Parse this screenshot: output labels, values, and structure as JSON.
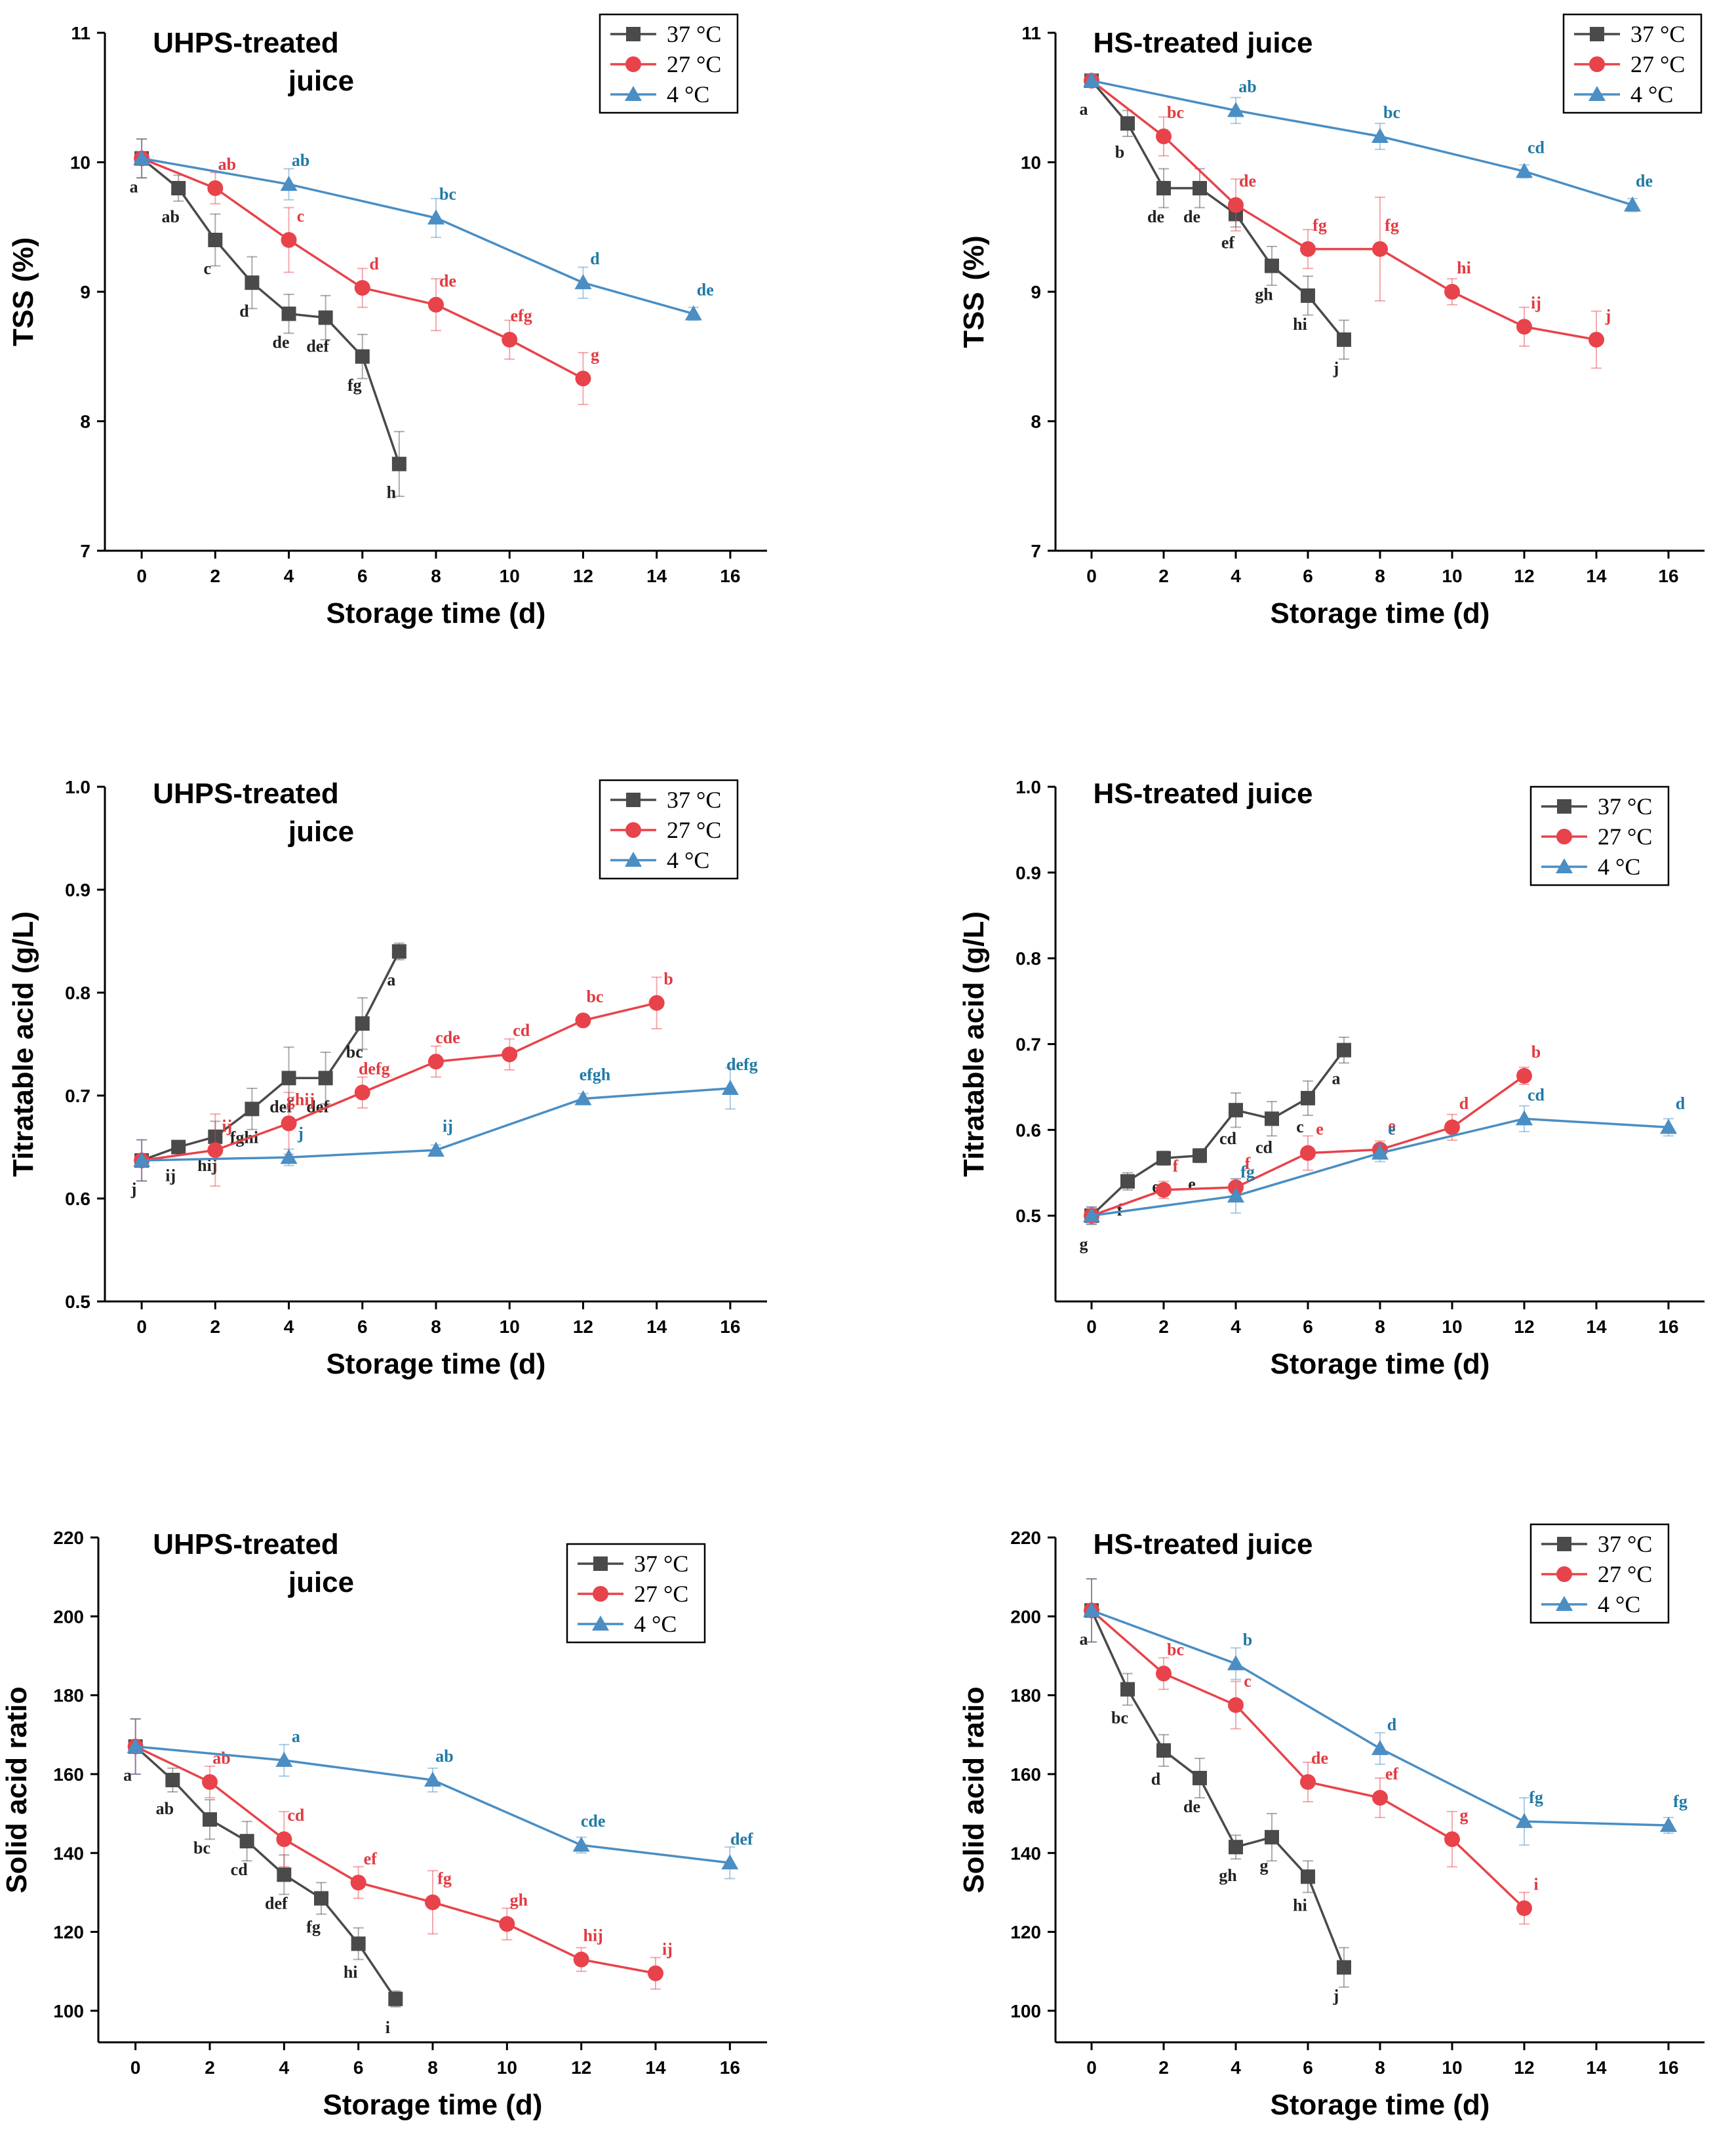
{
  "colors": {
    "c37": "#4a4a4a",
    "c27": "#e8434a",
    "c4": "#4a8ec4",
    "letter37": "#222222",
    "letter27": "#e23a40",
    "letter4": "#1f7aa6",
    "axis": "#000000"
  },
  "legend": {
    "labels": [
      "37 °C",
      "27 °C",
      "4 °C"
    ],
    "markers": [
      "square",
      "circle",
      "triangle"
    ]
  },
  "chart_data": [
    {
      "type": "line",
      "title": "UHPS-treated juice",
      "title_lines": [
        "UHPS-treated",
        "juice"
      ],
      "xlabel": "Storage time (d)",
      "ylabel": "TSS (%)",
      "xlim": [
        -1,
        17
      ],
      "ylim": [
        7,
        11
      ],
      "xticks": [
        0,
        2,
        4,
        6,
        8,
        10,
        12,
        14,
        16
      ],
      "yticks": [
        7,
        8,
        9,
        10,
        11
      ],
      "ytick_labels": [
        "7",
        "8",
        "9",
        "10",
        "11"
      ],
      "series": [
        {
          "name": "37 °C",
          "x": [
            0,
            1,
            2,
            3,
            4,
            5,
            6,
            7
          ],
          "y": [
            10.03,
            9.8,
            9.4,
            9.07,
            8.83,
            8.8,
            8.5,
            7.67
          ],
          "err": [
            0.15,
            0.1,
            0.2,
            0.2,
            0.15,
            0.17,
            0.17,
            0.25
          ],
          "letters": [
            "a",
            "ab",
            "c",
            "d",
            "de",
            "def",
            "fg",
            "h"
          ]
        },
        {
          "name": "27 °C",
          "x": [
            0,
            2,
            4,
            6,
            8,
            10,
            12
          ],
          "y": [
            10.03,
            9.8,
            9.4,
            9.03,
            8.9,
            8.63,
            8.33
          ],
          "err": [
            0.15,
            0.12,
            0.25,
            0.15,
            0.2,
            0.15,
            0.2
          ],
          "letters": [
            "",
            "ab",
            "c",
            "d",
            "de",
            "efg",
            "g"
          ]
        },
        {
          "name": "4 °C",
          "x": [
            0,
            4,
            8,
            12,
            15
          ],
          "y": [
            10.03,
            9.83,
            9.57,
            9.07,
            8.83
          ],
          "err": [
            0.15,
            0.12,
            0.15,
            0.12,
            0.05
          ],
          "letters": [
            "",
            "ab",
            "bc",
            "d",
            "de"
          ]
        }
      ]
    },
    {
      "type": "line",
      "title": "HS-treated juice",
      "title_lines": [
        "HS-treated juice"
      ],
      "xlabel": "Storage time (d)",
      "ylabel": "TSS  (%)",
      "xlim": [
        -1,
        17
      ],
      "ylim": [
        7,
        11
      ],
      "xticks": [
        0,
        2,
        4,
        6,
        8,
        10,
        12,
        14,
        16
      ],
      "yticks": [
        7,
        8,
        9,
        10,
        11
      ],
      "ytick_labels": [
        "7",
        "8",
        "9",
        "10",
        "11"
      ],
      "series": [
        {
          "name": "37 °C",
          "x": [
            0,
            1,
            2,
            3,
            4,
            5,
            6,
            7
          ],
          "y": [
            10.63,
            10.3,
            9.8,
            9.8,
            9.6,
            9.2,
            8.97,
            8.63
          ],
          "err": [
            0.05,
            0.1,
            0.15,
            0.15,
            0.1,
            0.15,
            0.15,
            0.15
          ],
          "letters": [
            "a",
            "b",
            "de",
            "de",
            "ef",
            "gh",
            "hi",
            "j"
          ]
        },
        {
          "name": "27 °C",
          "x": [
            0,
            2,
            4,
            6,
            8,
            10,
            12,
            14
          ],
          "y": [
            10.63,
            10.2,
            9.67,
            9.33,
            9.33,
            9.0,
            8.73,
            8.63
          ],
          "err": [
            0.05,
            0.15,
            0.2,
            0.15,
            0.4,
            0.1,
            0.15,
            0.22
          ],
          "letters": [
            "",
            "bc",
            "de",
            "fg",
            "fg",
            "hi",
            "ij",
            "j"
          ]
        },
        {
          "name": "4 °C",
          "x": [
            0,
            4,
            8,
            12,
            15
          ],
          "y": [
            10.63,
            10.4,
            10.2,
            9.93,
            9.67
          ],
          "err": [
            0.05,
            0.1,
            0.1,
            0.05,
            0.05
          ],
          "letters": [
            "",
            "ab",
            "bc",
            "cd",
            "de"
          ]
        }
      ]
    },
    {
      "type": "line",
      "title": "UHPS-treated juice",
      "title_lines": [
        "UHPS-treated",
        "juice"
      ],
      "xlabel": "Storage time (d)",
      "ylabel": "Titratable acid (g/L)",
      "xlim": [
        -1,
        17
      ],
      "ylim": [
        0.5,
        1.0
      ],
      "xticks": [
        0,
        2,
        4,
        6,
        8,
        10,
        12,
        14,
        16
      ],
      "yticks": [
        0.5,
        0.6,
        0.7,
        0.8,
        0.9,
        1.0
      ],
      "ytick_labels": [
        "0.5",
        "0.6",
        "0.7",
        "0.8",
        "0.9",
        "1.0"
      ],
      "series": [
        {
          "name": "37 °C",
          "x": [
            0,
            1,
            2,
            3,
            4,
            5,
            6,
            7
          ],
          "y": [
            0.637,
            0.65,
            0.66,
            0.687,
            0.717,
            0.717,
            0.77,
            0.84
          ],
          "err": [
            0.02,
            0.005,
            0.015,
            0.02,
            0.03,
            0.025,
            0.025,
            0.008
          ],
          "letters": [
            "j",
            "ij",
            "hij",
            "fghi",
            "def",
            "def",
            "bc",
            "a"
          ]
        },
        {
          "name": "27 °C",
          "x": [
            0,
            2,
            4,
            6,
            8,
            10,
            12,
            14
          ],
          "y": [
            0.637,
            0.647,
            0.673,
            0.703,
            0.733,
            0.74,
            0.773,
            0.79
          ],
          "err": [
            0.02,
            0.035,
            0.03,
            0.015,
            0.015,
            0.015,
            0.005,
            0.025
          ],
          "letters": [
            "",
            "ij",
            "ghij",
            "defg",
            "cde",
            "cd",
            "bc",
            "b"
          ]
        },
        {
          "name": "4 °C",
          "x": [
            0,
            4,
            8,
            12,
            16
          ],
          "y": [
            0.637,
            0.64,
            0.647,
            0.697,
            0.707
          ],
          "err": [
            0.02,
            0.008,
            0.005,
            0.005,
            0.02
          ],
          "letters": [
            "",
            "j",
            "ij",
            "efgh",
            "defg"
          ]
        }
      ]
    },
    {
      "type": "line",
      "title": "HS-treated juice",
      "title_lines": [
        "HS-treated juice"
      ],
      "xlabel": "Storage time (d)",
      "ylabel": "Titratable acid (g/L)",
      "xlim": [
        -1,
        17
      ],
      "ylim": [
        0.4,
        1.0
      ],
      "xticks": [
        0,
        2,
        4,
        6,
        8,
        10,
        12,
        14,
        16
      ],
      "yticks": [
        0.5,
        0.6,
        0.7,
        0.8,
        0.9,
        1.0
      ],
      "ytick_labels": [
        "0.5",
        "0.6",
        "0.7",
        "0.8",
        "0.9",
        "1.0"
      ],
      "series": [
        {
          "name": "37 °C",
          "x": [
            0,
            1,
            2,
            3,
            4,
            5,
            6,
            7
          ],
          "y": [
            0.5,
            0.54,
            0.567,
            0.57,
            0.623,
            0.613,
            0.637,
            0.693
          ],
          "err": [
            0.01,
            0.01,
            0.008,
            0.008,
            0.02,
            0.02,
            0.02,
            0.015
          ],
          "letters": [
            "g",
            "f",
            "e",
            "e",
            "cd",
            "cd",
            "c",
            "a"
          ]
        },
        {
          "name": "27 °C",
          "x": [
            0,
            2,
            4,
            6,
            8,
            10,
            12
          ],
          "y": [
            0.5,
            0.53,
            0.533,
            0.573,
            0.577,
            0.603,
            0.663
          ],
          "err": [
            0.01,
            0.01,
            0.01,
            0.02,
            0.01,
            0.015,
            0.01
          ],
          "letters": [
            "",
            "f",
            "f",
            "e",
            "e",
            "d",
            "b"
          ]
        },
        {
          "name": "4 °C",
          "x": [
            0,
            4,
            8,
            12,
            16
          ],
          "y": [
            0.5,
            0.523,
            0.573,
            0.613,
            0.603
          ],
          "err": [
            0.01,
            0.02,
            0.01,
            0.015,
            0.01
          ],
          "letters": [
            "",
            "fg",
            "e",
            "cd",
            "d"
          ]
        }
      ]
    },
    {
      "type": "line",
      "title": "UHPS-treated juice",
      "title_lines": [
        "UHPS-treated",
        "juice"
      ],
      "xlabel": "Storage time (d)",
      "ylabel": "Solid acid ratio",
      "xlim": [
        -1,
        17
      ],
      "ylim": [
        92,
        220
      ],
      "xticks": [
        0,
        2,
        4,
        6,
        8,
        10,
        12,
        14,
        16
      ],
      "yticks": [
        100,
        120,
        140,
        160,
        180,
        200,
        220
      ],
      "ytick_labels": [
        "100",
        "120",
        "140",
        "160",
        "180",
        "200",
        "220"
      ],
      "series": [
        {
          "name": "37 °C",
          "x": [
            0,
            1,
            2,
            3,
            4,
            5,
            6,
            7
          ],
          "y": [
            167,
            158.5,
            148.5,
            143,
            134.5,
            128.5,
            117,
            103
          ],
          "err": [
            7,
            3,
            5,
            5,
            5,
            4,
            4,
            2
          ],
          "letters": [
            "a",
            "ab",
            "bc",
            "cd",
            "def",
            "fg",
            "hi",
            "i"
          ]
        },
        {
          "name": "27 °C",
          "x": [
            0,
            2,
            4,
            6,
            8,
            10,
            12,
            14
          ],
          "y": [
            167,
            158,
            143.5,
            132.5,
            127.5,
            122,
            113,
            109.5
          ],
          "err": [
            7,
            4,
            7,
            4,
            8,
            4,
            3,
            4
          ],
          "letters": [
            "",
            "ab",
            "cd",
            "ef",
            "fg",
            "gh",
            "hij",
            "ij"
          ]
        },
        {
          "name": "4 °C",
          "x": [
            0,
            4,
            8,
            12,
            16
          ],
          "y": [
            167,
            163.5,
            158.5,
            142,
            137.5
          ],
          "err": [
            7,
            4,
            3,
            2,
            4
          ],
          "letters": [
            "",
            "a",
            "ab",
            "cde",
            "def"
          ]
        }
      ]
    },
    {
      "type": "line",
      "title": "HS-treated juice",
      "title_lines": [
        "HS-treated juice"
      ],
      "xlabel": "Storage time (d)",
      "ylabel": "Solid acid ratio",
      "xlim": [
        -1,
        17
      ],
      "ylim": [
        92,
        220
      ],
      "xticks": [
        0,
        2,
        4,
        6,
        8,
        10,
        12,
        14,
        16
      ],
      "yticks": [
        100,
        120,
        140,
        160,
        180,
        200,
        220
      ],
      "ytick_labels": [
        "100",
        "120",
        "140",
        "160",
        "180",
        "200",
        "220"
      ],
      "series": [
        {
          "name": "37 °C",
          "x": [
            0,
            1,
            2,
            3,
            4,
            5,
            6,
            7
          ],
          "y": [
            201.5,
            181.5,
            166,
            159,
            141.5,
            144,
            134,
            111
          ],
          "err": [
            8,
            4,
            4,
            5,
            3,
            6,
            4,
            5
          ],
          "letters": [
            "a",
            "bc",
            "d",
            "de",
            "gh",
            "g",
            "hi",
            "j"
          ]
        },
        {
          "name": "27 °C",
          "x": [
            0,
            2,
            4,
            6,
            8,
            10,
            12
          ],
          "y": [
            201.5,
            185.5,
            177.5,
            158,
            154,
            143.5,
            126
          ],
          "err": [
            8,
            4,
            6,
            5,
            5,
            7,
            4
          ],
          "letters": [
            "",
            "bc",
            "c",
            "de",
            "ef",
            "g",
            "i"
          ]
        },
        {
          "name": "4 °C",
          "x": [
            0,
            4,
            8,
            12,
            16
          ],
          "y": [
            201.5,
            188,
            166.5,
            148,
            147
          ],
          "err": [
            8,
            4,
            4,
            6,
            2
          ],
          "letters": [
            "",
            "b",
            "d",
            "fg",
            "fg"
          ]
        }
      ]
    }
  ]
}
